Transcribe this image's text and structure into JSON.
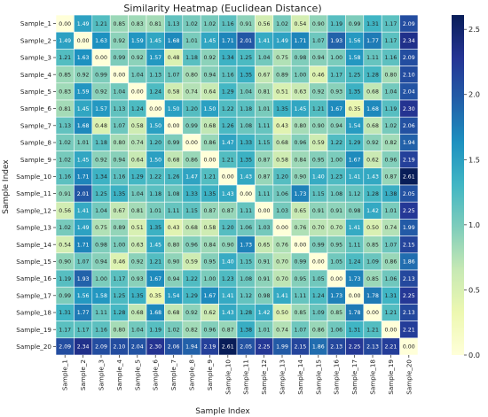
{
  "chart_data": {
    "type": "heatmap",
    "title": "Similarity Heatmap (Euclidean Distance)",
    "xlabel": "Sample Index",
    "ylabel": "Sample Index",
    "labels": [
      "Sample_1",
      "Sample_2",
      "Sample_3",
      "Sample_4",
      "Sample_5",
      "Sample_6",
      "Sample_7",
      "Sample_8",
      "Sample_9",
      "Sample_10",
      "Sample_11",
      "Sample_12",
      "Sample_13",
      "Sample_14",
      "Sample_15",
      "Sample_16",
      "Sample_17",
      "Sample_18",
      "Sample_19",
      "Sample_20"
    ],
    "values": [
      [
        0.0,
        1.49,
        1.21,
        0.85,
        0.83,
        0.81,
        1.13,
        1.02,
        1.02,
        1.16,
        0.91,
        0.56,
        1.02,
        0.54,
        0.9,
        1.19,
        0.99,
        1.31,
        1.17,
        2.09
      ],
      [
        1.49,
        0.0,
        1.63,
        0.92,
        1.59,
        1.45,
        1.68,
        1.01,
        1.45,
        1.71,
        2.01,
        1.41,
        1.49,
        1.71,
        1.07,
        1.93,
        1.56,
        1.77,
        1.17,
        2.34
      ],
      [
        1.21,
        1.63,
        0.0,
        0.99,
        0.92,
        1.57,
        0.48,
        1.18,
        0.92,
        1.34,
        1.25,
        1.04,
        0.75,
        0.98,
        0.94,
        1.0,
        1.58,
        1.11,
        1.16,
        2.09
      ],
      [
        0.85,
        0.92,
        0.99,
        0.0,
        1.04,
        1.13,
        1.07,
        0.8,
        0.94,
        1.16,
        1.35,
        0.67,
        0.89,
        1.0,
        0.46,
        1.17,
        1.25,
        1.28,
        0.8,
        2.1
      ],
      [
        0.83,
        1.59,
        0.92,
        1.04,
        0.0,
        1.24,
        0.58,
        0.74,
        0.64,
        1.29,
        1.04,
        0.81,
        0.51,
        0.63,
        0.92,
        0.93,
        1.35,
        0.68,
        1.04,
        2.04
      ],
      [
        0.81,
        1.45,
        1.57,
        1.13,
        1.24,
        0.0,
        1.5,
        1.2,
        1.5,
        1.22,
        1.18,
        1.01,
        1.35,
        1.45,
        1.21,
        1.67,
        0.35,
        1.68,
        1.19,
        2.3
      ],
      [
        1.13,
        1.68,
        0.48,
        1.07,
        0.58,
        1.5,
        0.0,
        0.99,
        0.68,
        1.26,
        1.08,
        1.11,
        0.43,
        0.8,
        0.9,
        0.94,
        1.54,
        0.68,
        1.02,
        2.06
      ],
      [
        1.02,
        1.01,
        1.18,
        0.8,
        0.74,
        1.2,
        0.99,
        0.0,
        0.86,
        1.47,
        1.33,
        1.15,
        0.68,
        0.96,
        0.59,
        1.22,
        1.29,
        0.92,
        0.82,
        1.94
      ],
      [
        1.02,
        1.45,
        0.92,
        0.94,
        0.64,
        1.5,
        0.68,
        0.86,
        0.0,
        1.21,
        1.35,
        0.87,
        0.58,
        0.84,
        0.95,
        1.0,
        1.67,
        0.62,
        0.96,
        2.19
      ],
      [
        1.16,
        1.71,
        1.34,
        1.16,
        1.29,
        1.22,
        1.26,
        1.47,
        1.21,
        0.0,
        1.43,
        0.87,
        1.2,
        0.9,
        1.4,
        1.23,
        1.41,
        1.43,
        0.87,
        2.61
      ],
      [
        0.91,
        2.01,
        1.25,
        1.35,
        1.04,
        1.18,
        1.08,
        1.33,
        1.35,
        1.43,
        0.0,
        1.11,
        1.06,
        1.73,
        1.15,
        1.08,
        1.12,
        1.28,
        1.38,
        2.05
      ],
      [
        0.56,
        1.41,
        1.04,
        0.67,
        0.81,
        1.01,
        1.11,
        1.15,
        0.87,
        0.87,
        1.11,
        0.0,
        1.03,
        0.65,
        0.91,
        0.91,
        0.98,
        1.42,
        1.01,
        2.25
      ],
      [
        1.02,
        1.49,
        0.75,
        0.89,
        0.51,
        1.35,
        0.43,
        0.68,
        0.58,
        1.2,
        1.06,
        1.03,
        0.0,
        0.76,
        0.7,
        0.7,
        1.41,
        0.5,
        0.74,
        1.99
      ],
      [
        0.54,
        1.71,
        0.98,
        1.0,
        0.63,
        1.45,
        0.8,
        0.96,
        0.84,
        0.9,
        1.73,
        0.65,
        0.76,
        0.0,
        0.99,
        0.95,
        1.11,
        0.85,
        1.07,
        2.15
      ],
      [
        0.9,
        1.07,
        0.94,
        0.46,
        0.92,
        1.21,
        0.9,
        0.59,
        0.95,
        1.4,
        1.15,
        0.91,
        0.7,
        0.99,
        0.0,
        1.05,
        1.24,
        1.09,
        0.86,
        1.86
      ],
      [
        1.19,
        1.93,
        1.0,
        1.17,
        0.93,
        1.67,
        0.94,
        1.22,
        1.0,
        1.23,
        1.08,
        0.91,
        0.7,
        0.95,
        1.05,
        0.0,
        1.73,
        0.85,
        1.06,
        2.13
      ],
      [
        0.99,
        1.56,
        1.58,
        1.25,
        1.35,
        0.35,
        1.54,
        1.29,
        1.67,
        1.41,
        1.12,
        0.98,
        1.41,
        1.11,
        1.24,
        1.73,
        0.0,
        1.78,
        1.31,
        2.25
      ],
      [
        1.31,
        1.77,
        1.11,
        1.28,
        0.68,
        1.68,
        0.68,
        0.92,
        0.62,
        1.43,
        1.28,
        1.42,
        0.5,
        0.85,
        1.09,
        0.85,
        1.78,
        0.0,
        1.21,
        2.13
      ],
      [
        1.17,
        1.17,
        1.16,
        0.8,
        1.04,
        1.19,
        1.02,
        0.82,
        0.96,
        0.87,
        1.38,
        1.01,
        0.74,
        1.07,
        0.86,
        1.06,
        1.31,
        1.21,
        0.0,
        2.21
      ],
      [
        2.09,
        2.34,
        2.09,
        2.1,
        2.04,
        2.3,
        2.06,
        1.94,
        2.19,
        2.61,
        2.05,
        2.25,
        1.99,
        2.15,
        1.86,
        2.13,
        2.25,
        2.13,
        2.21,
        0.0
      ]
    ],
    "colorbar": {
      "vmin": 0,
      "vmax": 2.61,
      "ticks": [
        0.0,
        0.5,
        1.0,
        1.5,
        2.0,
        2.5
      ]
    },
    "colormap": "YlGnBu",
    "grid": true
  }
}
